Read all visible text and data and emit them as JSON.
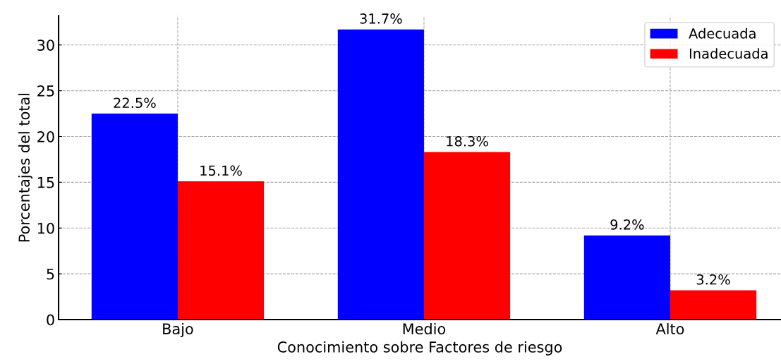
{
  "chart_data": {
    "type": "bar",
    "xlabel": "Conocimiento sobre Factores de riesgo",
    "ylabel": "Porcentajes del total",
    "categories": [
      "Bajo",
      "Medio",
      "Alto"
    ],
    "series": [
      {
        "name": "Adecuada",
        "color": "#0000ff",
        "values": [
          22.5,
          31.7,
          9.2
        ],
        "value_labels": [
          "22.5%",
          "31.7%",
          "9.2%"
        ]
      },
      {
        "name": "Inadecuada",
        "color": "#ff0000",
        "values": [
          15.1,
          18.3,
          3.2
        ],
        "value_labels": [
          "15.1%",
          "18.3%",
          "3.2%"
        ]
      }
    ],
    "ylim": [
      0,
      33.2
    ],
    "yticks": [
      0,
      5,
      10,
      15,
      20,
      25,
      30
    ],
    "grid": true,
    "legend": "top right"
  }
}
